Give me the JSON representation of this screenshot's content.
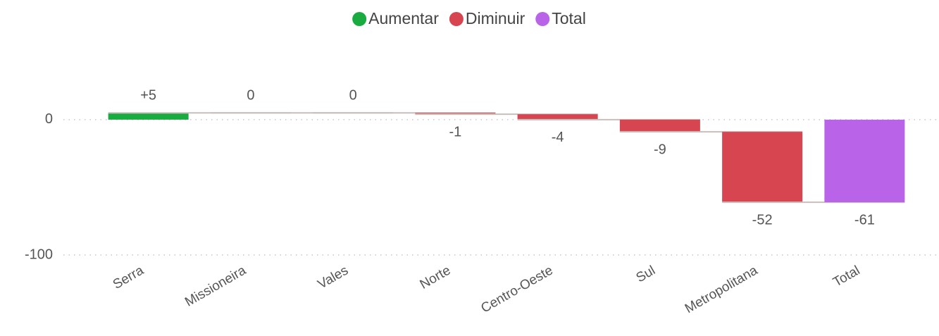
{
  "chart_data": {
    "type": "waterfall",
    "categories": [
      "Serra",
      "Missioneira",
      "Vales",
      "Norte",
      "Centro-Oeste",
      "Sul",
      "Metropolitana",
      "Total"
    ],
    "values": [
      5,
      0,
      0,
      -1,
      -4,
      -9,
      -52,
      -61
    ],
    "value_labels": [
      "+5",
      "0",
      "0",
      "-1",
      "-4",
      "-9",
      "-52",
      "-61"
    ],
    "legend_items": [
      {
        "name": "Aumentar",
        "color": "#1aab40"
      },
      {
        "name": "Diminuir",
        "color": "#d64550"
      },
      {
        "name": "Total",
        "color": "#b964e8"
      }
    ],
    "ylim": [
      -100,
      40
    ],
    "yticks": [
      0,
      -100
    ],
    "grid": true
  }
}
